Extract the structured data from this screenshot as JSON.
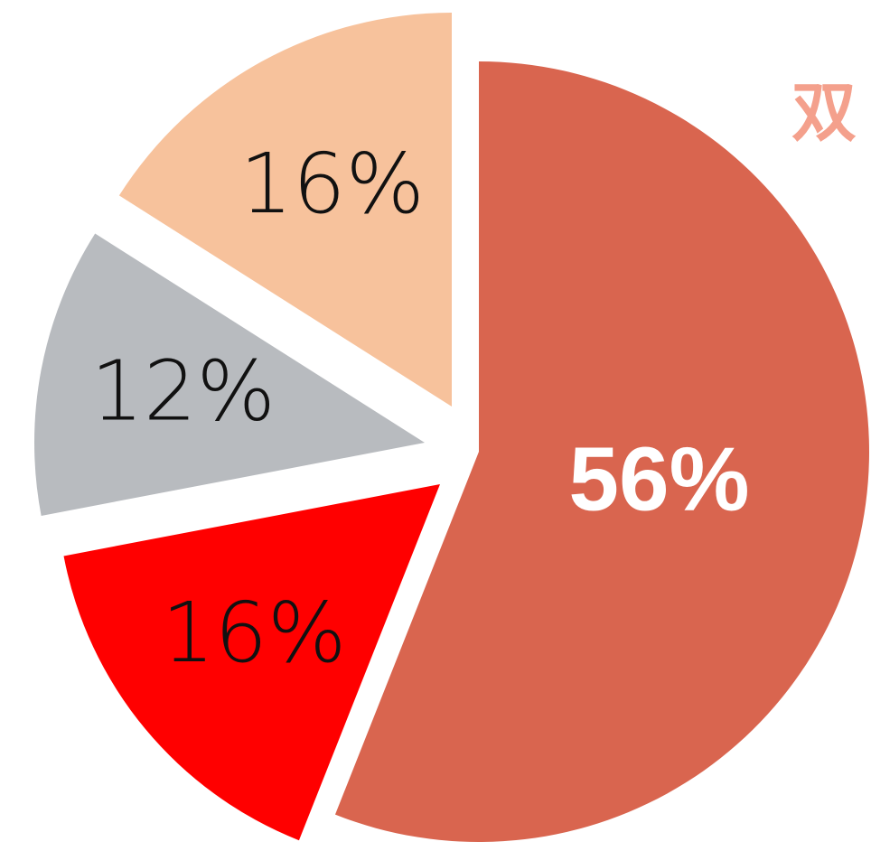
{
  "chart_data": {
    "type": "pie",
    "title": "双",
    "values": [
      56,
      16,
      12,
      16
    ],
    "value_labels": [
      "56%",
      "16%",
      "12%",
      "16%"
    ],
    "colors": [
      "#d9654f",
      "#ff0000",
      "#b8bbbf",
      "#f7c29c"
    ]
  }
}
